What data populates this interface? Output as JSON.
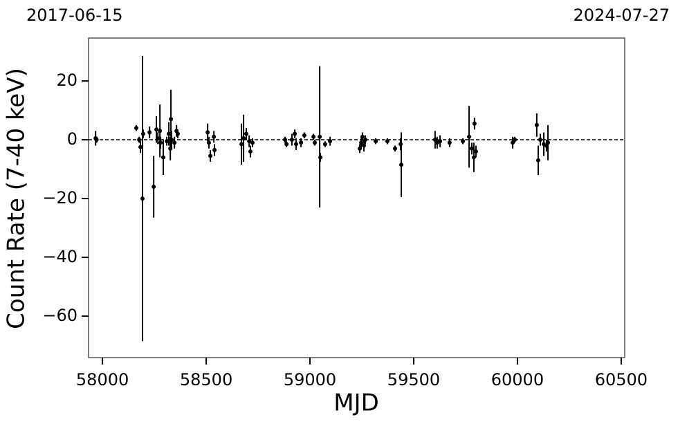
{
  "chart_data": {
    "type": "errorbar",
    "annotations": [
      "2017-06-15",
      "2024-07-27"
    ],
    "xlabel": "MJD",
    "ylabel": "Count Rate (7-40 keV)",
    "xlim": [
      57933,
      60517
    ],
    "ylim": [
      -74.1,
      34.6
    ],
    "xticks": [
      58000,
      58500,
      59000,
      59500,
      60000,
      60500
    ],
    "yticks": [
      {
        "value": -60,
        "label": "−60"
      },
      {
        "value": -40,
        "label": "−40"
      },
      {
        "value": -20,
        "label": "−20"
      },
      0,
      20
    ],
    "hline": 0,
    "color": "#000000",
    "x": [
      57967,
      57972,
      58163,
      58177,
      58183,
      58193,
      58196,
      58227,
      58247,
      58260,
      58267,
      58277,
      58280,
      58293,
      58310,
      58320,
      58327,
      58330,
      58333,
      58347,
      58357,
      58363,
      58507,
      58513,
      58520,
      58537,
      58540,
      58670,
      58680,
      58693,
      58707,
      58713,
      58723,
      58880,
      58887,
      58913,
      58927,
      58933,
      58957,
      58973,
      59017,
      59023,
      59047,
      59050,
      59073,
      59097,
      59240,
      59247,
      59253,
      59260,
      59267,
      59317,
      59373,
      59410,
      59437,
      59440,
      59603,
      59613,
      59627,
      59673,
      59737,
      59767,
      59780,
      59790,
      59793,
      59800,
      59977,
      59987,
      60093,
      60100,
      60110,
      60127,
      60140,
      60147
    ],
    "values": [
      0.5,
      0,
      4,
      0,
      -2.5,
      -20,
      2,
      2.5,
      -16,
      3.5,
      0.5,
      3,
      -1,
      -6,
      -0.5,
      2,
      -3,
      7,
      0,
      -1,
      3,
      2,
      2.5,
      -1,
      -5.5,
      1,
      -3.5,
      -1.5,
      0.5,
      2,
      -0.5,
      -4,
      -1,
      0,
      -1.5,
      0,
      2,
      -1.5,
      -1,
      1.5,
      1,
      -1,
      1,
      -6,
      -1.5,
      -0.5,
      -3,
      -1,
      1,
      -2,
      0,
      -0.5,
      -0.5,
      -3,
      -1.5,
      -8.5,
      0,
      -1,
      -0.5,
      -1,
      -0.5,
      1,
      -3,
      -6,
      5.5,
      -4,
      -1,
      0,
      5,
      -7,
      0,
      -1.5,
      -2,
      -1
    ],
    "errors": [
      2.5,
      1,
      1,
      1,
      2,
      48.5,
      1.5,
      2,
      10.5,
      4.5,
      2,
      9,
      2,
      6,
      1.5,
      4,
      4,
      10,
      3,
      2,
      2,
      1.5,
      3,
      2,
      2,
      2,
      2,
      7,
      8,
      2,
      2,
      2,
      1.5,
      1,
      1,
      2,
      1.5,
      2,
      1.5,
      1,
      1,
      1,
      24,
      1.5,
      1,
      1.5,
      1.5,
      2,
      1.5,
      2,
      1.5,
      1,
      1,
      1,
      2,
      11,
      3,
      2,
      2,
      1.5,
      1,
      10.5,
      2,
      5,
      2,
      2,
      2,
      1,
      4,
      5,
      2,
      4,
      2,
      6
    ]
  }
}
